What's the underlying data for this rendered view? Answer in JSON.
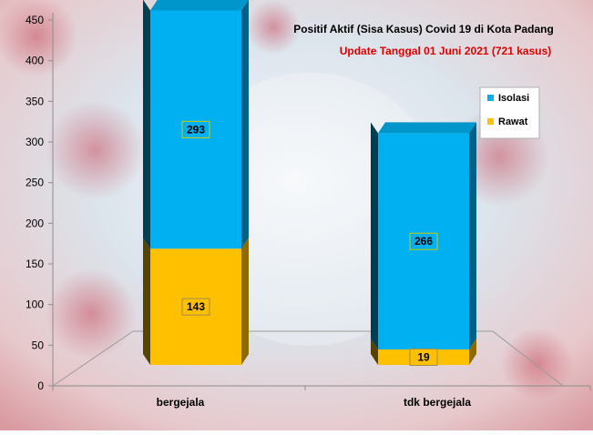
{
  "chart_data": {
    "type": "bar",
    "stacked": true,
    "title": "Positif Aktif  (Sisa Kasus) Covid 19 di Kota Padang",
    "subtitle": "Update Tanggal  01 Juni 2021  (721 kasus)",
    "categories": [
      "bergejala",
      "tdk bergejala"
    ],
    "series": [
      {
        "name": "Rawat",
        "values": [
          143,
          19
        ],
        "color": "#FFC000"
      },
      {
        "name": "Isolasi",
        "values": [
          293,
          266
        ],
        "color": "#00B0F0"
      }
    ],
    "data_labels": [
      [
        "143",
        "19"
      ],
      [
        "293",
        "266"
      ]
    ],
    "yticks": [
      "0",
      "50",
      "100",
      "150",
      "200",
      "250",
      "300",
      "350",
      "400",
      "450"
    ],
    "ylim": [
      0,
      450
    ],
    "legend_position": "right",
    "colors": {
      "title": "#000000",
      "subtitle": "#E00000",
      "label_border_isolasi": "#CCCC00",
      "label_border_rawat": "#A08C50"
    }
  }
}
